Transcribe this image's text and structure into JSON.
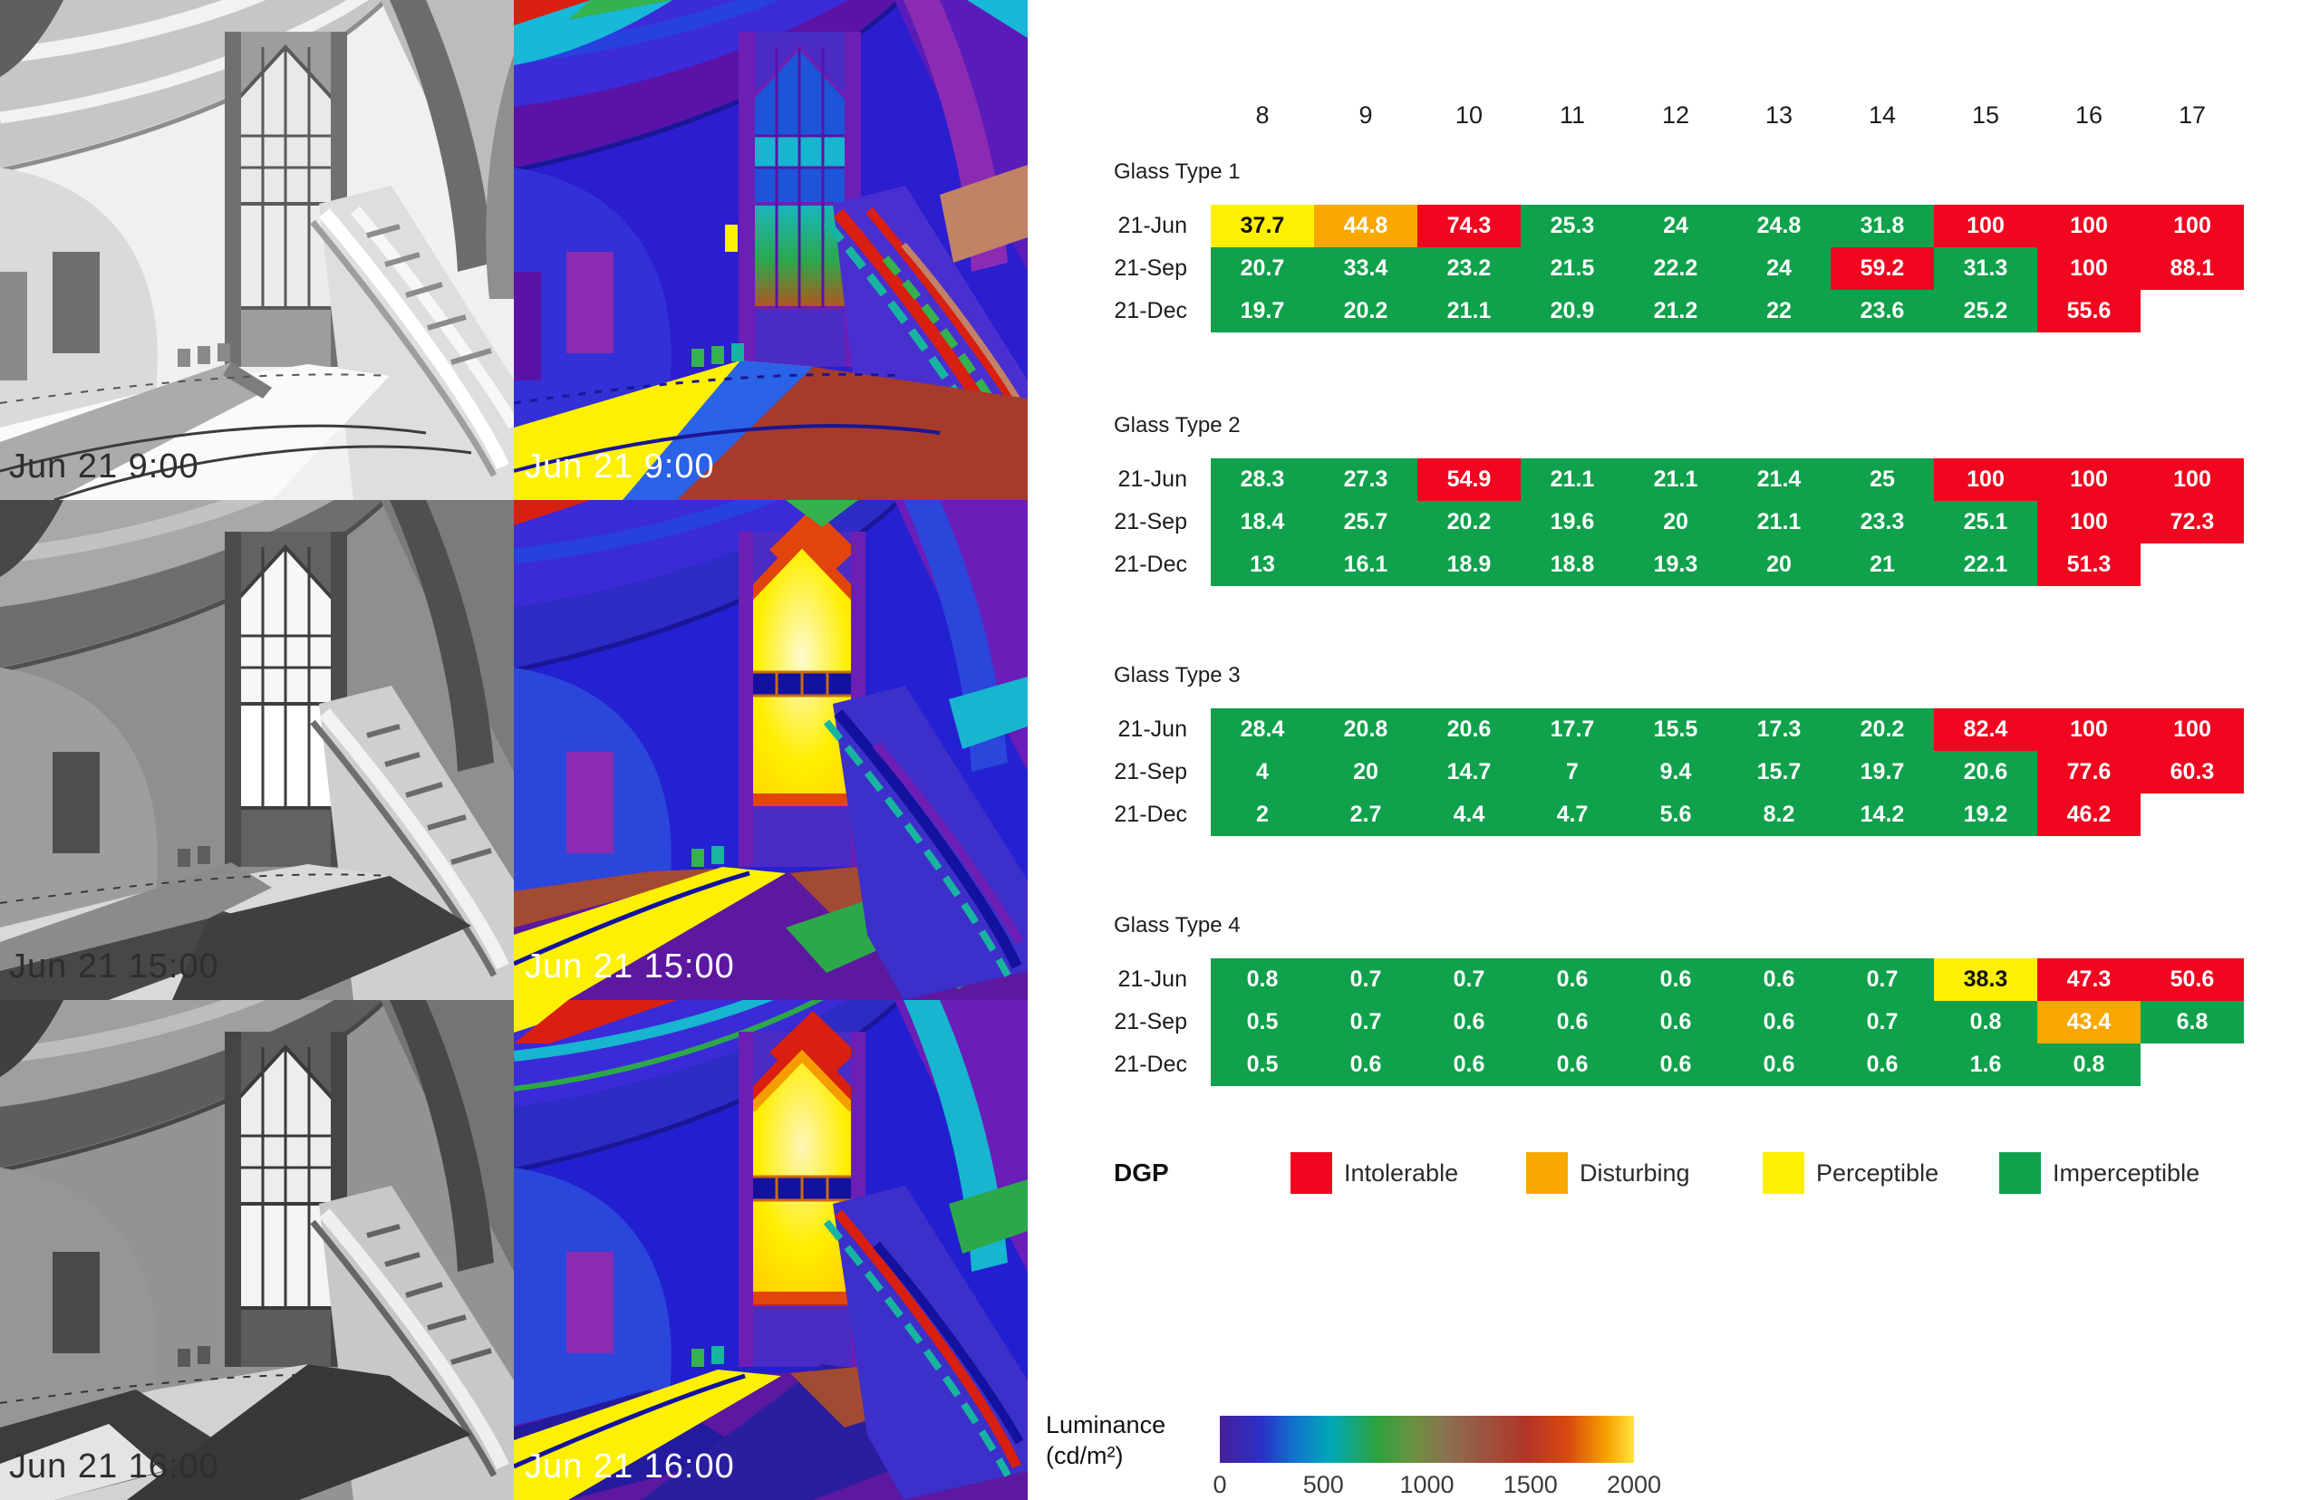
{
  "colors": {
    "imperceptible": "#0fa14b",
    "perceptible": "#fdf000",
    "disturbing": "#f9a800",
    "intolerable": "#f1051f"
  },
  "dgp_thresholds": {
    "perceptible": 35,
    "disturbing": 40,
    "intolerable": 45
  },
  "hours": [
    "8",
    "9",
    "10",
    "11",
    "12",
    "13",
    "14",
    "15",
    "16",
    "17"
  ],
  "images": {
    "rows": [
      {
        "time_label": "Jun 21 9:00"
      },
      {
        "time_label": "Jun 21 15:00"
      },
      {
        "time_label": "Jun 21 16:00"
      }
    ],
    "columns": [
      "grayscale-render",
      "falsecolor-luminance-render"
    ]
  },
  "chart_data": [
    {
      "type": "heatmap",
      "title": "Glass Type 1",
      "columns": [
        8,
        9,
        10,
        11,
        12,
        13,
        14,
        15,
        16,
        17
      ],
      "rows": [
        "21-Jun",
        "21-Sep",
        "21-Dec"
      ],
      "values": [
        [
          37.7,
          44.8,
          74.3,
          25.3,
          24,
          24.8,
          31.8,
          100,
          100,
          100
        ],
        [
          20.7,
          33.4,
          23.2,
          21.5,
          22.2,
          24,
          59.2,
          31.3,
          100,
          88.1
        ],
        [
          19.7,
          20.2,
          21.1,
          20.9,
          21.2,
          22,
          23.6,
          25.2,
          55.6,
          null
        ]
      ]
    },
    {
      "type": "heatmap",
      "title": "Glass Type 2",
      "columns": [
        8,
        9,
        10,
        11,
        12,
        13,
        14,
        15,
        16,
        17
      ],
      "rows": [
        "21-Jun",
        "21-Sep",
        "21-Dec"
      ],
      "values": [
        [
          28.3,
          27.3,
          54.9,
          21.1,
          21.1,
          21.4,
          25,
          100,
          100,
          100
        ],
        [
          18.4,
          25.7,
          20.2,
          19.6,
          20,
          21.1,
          23.3,
          25.1,
          100,
          72.3
        ],
        [
          13,
          16.1,
          18.9,
          18.8,
          19.3,
          20,
          21,
          22.1,
          51.3,
          null
        ]
      ]
    },
    {
      "type": "heatmap",
      "title": "Glass Type 3",
      "columns": [
        8,
        9,
        10,
        11,
        12,
        13,
        14,
        15,
        16,
        17
      ],
      "rows": [
        "21-Jun",
        "21-Sep",
        "21-Dec"
      ],
      "values": [
        [
          28.4,
          20.8,
          20.6,
          17.7,
          15.5,
          17.3,
          20.2,
          82.4,
          100,
          100
        ],
        [
          4,
          20,
          14.7,
          7,
          9.4,
          15.7,
          19.7,
          20.6,
          77.6,
          60.3
        ],
        [
          2,
          2.7,
          4.4,
          4.7,
          5.6,
          8.2,
          14.2,
          19.2,
          46.2,
          null
        ]
      ]
    },
    {
      "type": "heatmap",
      "title": "Glass Type 4",
      "columns": [
        8,
        9,
        10,
        11,
        12,
        13,
        14,
        15,
        16,
        17
      ],
      "rows": [
        "21-Jun",
        "21-Sep",
        "21-Dec"
      ],
      "values": [
        [
          0.8,
          0.7,
          0.7,
          0.6,
          0.6,
          0.6,
          0.7,
          38.3,
          47.3,
          50.6
        ],
        [
          0.5,
          0.7,
          0.6,
          0.6,
          0.6,
          0.6,
          0.7,
          0.8,
          43.4,
          6.8
        ],
        [
          0.5,
          0.6,
          0.6,
          0.6,
          0.6,
          0.6,
          0.6,
          1.6,
          0.8,
          null
        ]
      ]
    }
  ],
  "dgp_legend": {
    "title": "DGP",
    "items": [
      {
        "key": "intolerable",
        "label": "Intolerable",
        "color": "#f1051f"
      },
      {
        "key": "disturbing",
        "label": "Disturbing",
        "color": "#f9a800"
      },
      {
        "key": "perceptible",
        "label": "Perceptible",
        "color": "#fdf000"
      },
      {
        "key": "imperceptible",
        "label": "Imperceptible",
        "color": "#0fa14b"
      }
    ]
  },
  "luminance_scale": {
    "title": "Luminance",
    "unit": "(cd/m²)",
    "min": 0,
    "max": 2000,
    "ticks": [
      "0",
      "500",
      "1000",
      "1500",
      "2000"
    ]
  }
}
